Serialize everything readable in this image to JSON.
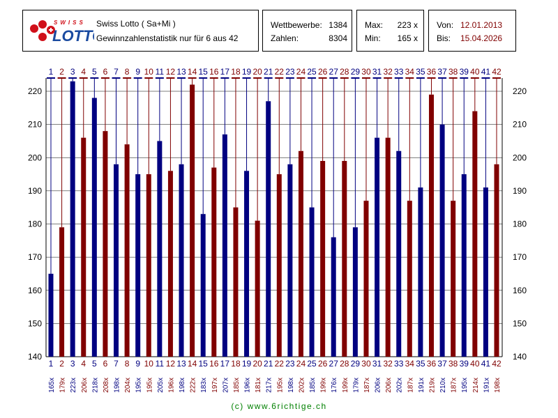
{
  "header": {
    "logo_text": "SWISS LOTTO",
    "title": "Swiss Lotto ( Sa+Mi )",
    "subtitle": "Gewinnzahlenstatistik nur für 6 aus 42"
  },
  "stats": {
    "wettbewerbe_label": "Wettbewerbe:",
    "wettbewerbe": "1384",
    "zahlen_label": "Zahlen:",
    "zahlen": "8304",
    "max_label": "Max:",
    "max": "223 x",
    "min_label": "Min:",
    "min": "165 x"
  },
  "period": {
    "von_label": "Von:",
    "von": "12.01.2013",
    "bis_label": "Bis:",
    "bis": "15.04.2026"
  },
  "colors": {
    "odd": "#000080",
    "even": "#800000",
    "date": "#800000",
    "footer": "#008000"
  },
  "chart_data": {
    "type": "bar",
    "categories": [
      "1",
      "2",
      "3",
      "4",
      "5",
      "6",
      "7",
      "8",
      "9",
      "10",
      "11",
      "12",
      "13",
      "14",
      "15",
      "16",
      "17",
      "18",
      "19",
      "20",
      "21",
      "22",
      "23",
      "24",
      "25",
      "26",
      "27",
      "28",
      "29",
      "30",
      "31",
      "32",
      "33",
      "34",
      "35",
      "36",
      "37",
      "38",
      "39",
      "40",
      "41",
      "42"
    ],
    "values": [
      165,
      179,
      223,
      206,
      218,
      208,
      198,
      204,
      195,
      195,
      205,
      196,
      198,
      222,
      183,
      197,
      207,
      185,
      196,
      181,
      217,
      195,
      198,
      202,
      185,
      199,
      176,
      199,
      179,
      187,
      206,
      206,
      202,
      187,
      191,
      219,
      210,
      187,
      195,
      214,
      191,
      198
    ],
    "value_labels": [
      "165x",
      "179x",
      "223x",
      "206x",
      "218x",
      "208x",
      "198x",
      "204x",
      "195x",
      "195x",
      "205x",
      "196x",
      "198x",
      "222x",
      "183x",
      "197x",
      "207x",
      "185x",
      "196x",
      "181x",
      "217x",
      "195x",
      "198x",
      "202x",
      "185x",
      "199x",
      "176x",
      "199x",
      "179x",
      "187x",
      "206x",
      "206x",
      "202x",
      "187x",
      "191x",
      "219x",
      "210x",
      "187x",
      "195x",
      "214x",
      "191x",
      "198x"
    ],
    "ylim": [
      140,
      224
    ],
    "yticks": [
      140,
      150,
      160,
      170,
      180,
      190,
      200,
      210,
      220
    ],
    "grid": true
  },
  "footer": "(c) www.6richtige.ch"
}
